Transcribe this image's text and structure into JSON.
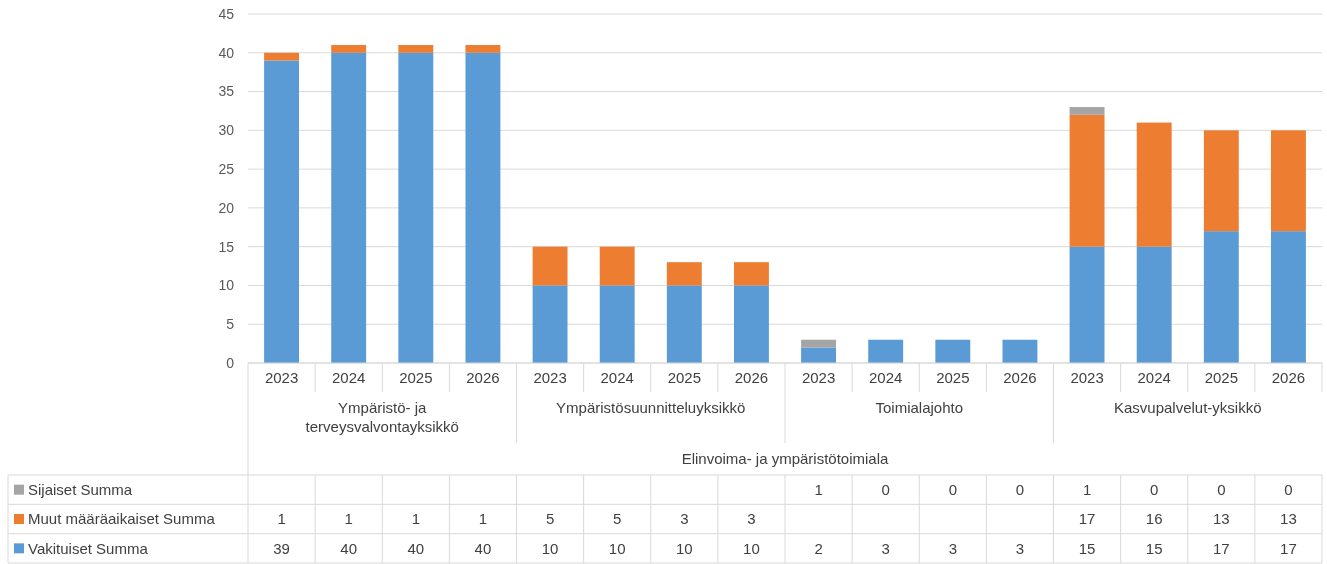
{
  "chart_data": {
    "type": "bar",
    "stacked": true,
    "categories": [
      "2023",
      "2024",
      "2025",
      "2026",
      "2023",
      "2024",
      "2025",
      "2026",
      "2023",
      "2024",
      "2025",
      "2026",
      "2023",
      "2024",
      "2025",
      "2026"
    ],
    "series": [
      {
        "name": "Vakituiset Summa",
        "color": "#5b9bd5",
        "values": [
          39,
          40,
          40,
          40,
          10,
          10,
          10,
          10,
          2,
          3,
          3,
          3,
          15,
          15,
          17,
          17
        ]
      },
      {
        "name": "Muut määräaikaiset Summa",
        "color": "#ed7d31",
        "values": [
          1,
          1,
          1,
          1,
          5,
          5,
          3,
          3,
          null,
          null,
          null,
          null,
          17,
          16,
          13,
          13
        ]
      },
      {
        "name": "Sijaiset Summa",
        "color": "#a5a5a5",
        "values": [
          null,
          null,
          null,
          null,
          null,
          null,
          null,
          null,
          1,
          0,
          0,
          0,
          1,
          0,
          0,
          0
        ]
      }
    ],
    "ylim": [
      0,
      45
    ],
    "yticks": [
      0,
      5,
      10,
      15,
      20,
      25,
      30,
      35,
      40,
      45
    ],
    "grid": "y",
    "legend": "bottom left",
    "data_labels": true,
    "annotations": [
      "Ympäristö- ja terveysvalvontayksikkö",
      "Ympäristösuunnitteluyksikkö",
      "Toimialajohto",
      "Kasvupalvelut-yksikkö",
      "Elinvoima- ja ympäristötoimiala"
    ]
  }
}
